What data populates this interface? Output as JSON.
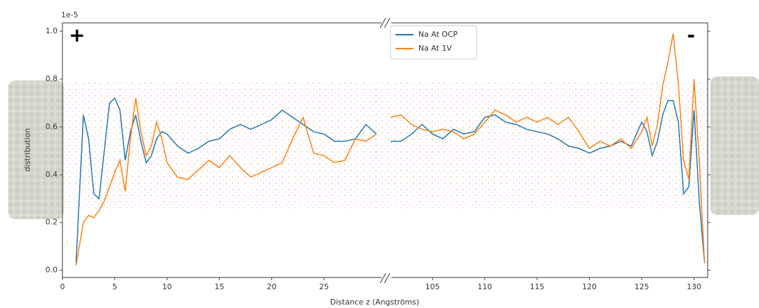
{
  "chart_data": {
    "type": "line",
    "offset_label": "1e-5",
    "x_label": "Distance z (Angströms)",
    "y_label": "distribution",
    "annotations": [
      "+",
      "-"
    ],
    "x": [
      1.3,
      2,
      2.5,
      3,
      3.5,
      4,
      4.5,
      5,
      5.5,
      6,
      6.5,
      7,
      7.5,
      8,
      8.5,
      9,
      9.5,
      10,
      11,
      12,
      13,
      14,
      15,
      16,
      17,
      18,
      19,
      20,
      21,
      22,
      23,
      24,
      25,
      26,
      27,
      28,
      29,
      30,
      null,
      101,
      102,
      103,
      104,
      105,
      106,
      107,
      108,
      109,
      110,
      111,
      112,
      113,
      114,
      115,
      116,
      117,
      118,
      119,
      120,
      121,
      122,
      123,
      124,
      125,
      125.5,
      126,
      126.5,
      127,
      127.5,
      128,
      128.5,
      129,
      129.5,
      130,
      130.5,
      131
    ],
    "series": [
      {
        "name": "Na At OCP",
        "color": "#1f77b4",
        "values": [
          0.03,
          0.65,
          0.55,
          0.32,
          0.3,
          0.5,
          0.7,
          0.72,
          0.67,
          0.46,
          0.58,
          0.65,
          0.54,
          0.45,
          0.48,
          0.55,
          0.58,
          0.57,
          0.52,
          0.49,
          0.51,
          0.54,
          0.55,
          0.59,
          0.61,
          0.59,
          0.61,
          0.63,
          0.67,
          0.64,
          0.61,
          0.58,
          0.57,
          0.54,
          0.54,
          0.55,
          0.61,
          0.57,
          null,
          0.54,
          0.54,
          0.57,
          0.61,
          0.57,
          0.55,
          0.59,
          0.57,
          0.58,
          0.64,
          0.65,
          0.62,
          0.61,
          0.59,
          0.58,
          0.57,
          0.55,
          0.52,
          0.51,
          0.49,
          0.51,
          0.52,
          0.54,
          0.52,
          0.62,
          0.58,
          0.48,
          0.54,
          0.65,
          0.71,
          0.71,
          0.62,
          0.32,
          0.35,
          0.67,
          0.29,
          0.03
        ]
      },
      {
        "name": "Na At 1V",
        "color": "#ff7f0e",
        "values": [
          0.02,
          0.2,
          0.23,
          0.22,
          0.25,
          0.29,
          0.35,
          0.41,
          0.46,
          0.33,
          0.55,
          0.72,
          0.58,
          0.48,
          0.52,
          0.62,
          0.55,
          0.45,
          0.39,
          0.38,
          0.42,
          0.46,
          0.43,
          0.48,
          0.43,
          0.39,
          0.41,
          0.43,
          0.45,
          0.55,
          0.64,
          0.49,
          0.48,
          0.45,
          0.46,
          0.55,
          0.54,
          0.57,
          null,
          0.64,
          0.65,
          0.61,
          0.59,
          0.58,
          0.59,
          0.58,
          0.55,
          0.57,
          0.62,
          0.67,
          0.65,
          0.62,
          0.64,
          0.62,
          0.64,
          0.61,
          0.64,
          0.58,
          0.51,
          0.54,
          0.52,
          0.55,
          0.51,
          0.58,
          0.64,
          0.52,
          0.61,
          0.77,
          0.87,
          0.99,
          0.78,
          0.46,
          0.38,
          0.8,
          0.46,
          0.03
        ]
      }
    ],
    "xlim": [
      0,
      131.3
    ],
    "x_break": [
      30.6,
      100.7
    ],
    "xticks": [
      0,
      5,
      10,
      15,
      20,
      25,
      105,
      110,
      115,
      120,
      125,
      130
    ],
    "ylim": [
      -0.03,
      1.035
    ],
    "yticks": [
      {
        "value": 0,
        "label": "0.0"
      },
      0.2,
      0.4,
      0.6,
      0.8,
      {
        "value": 1,
        "label": "1.0"
      }
    ],
    "legend": "upper center"
  }
}
